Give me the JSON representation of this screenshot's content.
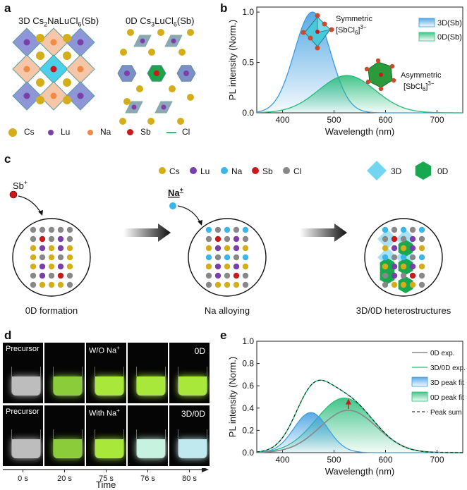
{
  "panels": {
    "a": "a",
    "b": "b",
    "c": "c",
    "d": "d",
    "e": "e"
  },
  "panel_a": {
    "title_3d_parts": [
      "3D Cs",
      "2",
      "NaLuCl",
      "6",
      "(Sb)"
    ],
    "title_0d_parts": [
      "0D Cs",
      "3",
      "LuCl",
      "6",
      "(Sb)"
    ],
    "legend": [
      {
        "label": "Cs",
        "color": "#d4ae1a"
      },
      {
        "label": "Lu",
        "color": "#7a3fa8"
      },
      {
        "label": "Na",
        "color": "#f08a45"
      },
      {
        "label": "Sb",
        "color": "#c81a1a"
      },
      {
        "label": "Cl",
        "color": "#2fbf74"
      }
    ]
  },
  "panel_b": {
    "ylabel": "PL intensity (Norm.)",
    "xlabel": "Wavelength (nm)",
    "inset_sym_parts": [
      "Symmetric",
      "[SbCl",
      "6",
      "]",
      "3−"
    ],
    "inset_asym_parts": [
      "Asymmetric",
      "[SbCl",
      "6",
      "]",
      "3−"
    ],
    "chart_data": {
      "type": "area",
      "xlim": [
        350,
        750
      ],
      "ylim": [
        0,
        1.05
      ],
      "xticks": [
        400,
        500,
        600,
        700
      ],
      "yticks": [
        0.0,
        0.5,
        1.0
      ],
      "series": [
        {
          "name": "3D(Sb)",
          "peak": 458,
          "sigma": 35,
          "amplitude": 1.0,
          "color": "#3a9be0"
        },
        {
          "name": "0D(Sb)",
          "peak": 525,
          "sigma": 55,
          "amplitude": 0.37,
          "color": "#22bb77"
        }
      ]
    }
  },
  "panel_c": {
    "legend": [
      {
        "label": "Cs",
        "color": "#d4ae1a"
      },
      {
        "label": "Lu",
        "color": "#7a3fa8"
      },
      {
        "label": "Na",
        "color": "#3bb6e8"
      },
      {
        "label": "Sb",
        "color": "#c81a1a"
      },
      {
        "label": "Cl",
        "color": "#888888"
      }
    ],
    "legend_3d": "3D",
    "legend_0d": "0D",
    "sb_label": "Sb",
    "sb_sup": "+",
    "na_label": "Na",
    "na_sup": "+",
    "captions": [
      "0D formation",
      "Na alloying",
      "3D/0D heterostructures"
    ]
  },
  "panel_d": {
    "row1": [
      {
        "text": "Precursor",
        "liquid": "#bdbdbd"
      },
      {
        "text": "",
        "liquid": "#8acc3a"
      },
      {
        "text": "W/O Na",
        "sup": "+",
        "liquid": "#a8e83a"
      },
      {
        "text": "",
        "liquid": "#a8e83a"
      },
      {
        "text": "0D",
        "liquid": "#a8e83a"
      }
    ],
    "row2": [
      {
        "text": "Precursor",
        "liquid": "#bdbdbd"
      },
      {
        "text": "",
        "liquid": "#8acc3a"
      },
      {
        "text": "With Na",
        "sup": "+",
        "liquid": "#a8e83a"
      },
      {
        "text": "",
        "liquid": "#c8f2e0"
      },
      {
        "text": "3D/0D",
        "liquid": "#bfe9ee"
      }
    ],
    "times": [
      "0 s",
      "20 s",
      "75 s",
      "76 s",
      "80 s"
    ],
    "axis_label": "Time"
  },
  "panel_e": {
    "ylabel": "PL intensity (Norm.)",
    "xlabel": "Wavelength (nm)",
    "chart_data": {
      "type": "line",
      "xlim": [
        350,
        750
      ],
      "ylim": [
        0,
        1.0
      ],
      "xticks": [
        400,
        500,
        600,
        700
      ],
      "yticks": [
        0.0,
        0.2,
        0.4,
        0.6,
        0.8,
        1.0
      ],
      "series": [
        {
          "name": "0D exp.",
          "peak": 528,
          "sigma": 55,
          "amplitude": 0.38,
          "color": "#888888"
        },
        {
          "name": "3D/0D exp.",
          "color": "#22bb77"
        },
        {
          "name": "3D peak fit",
          "peak": 455,
          "sigma": 33,
          "amplitude": 0.36,
          "color": "#3a9be0"
        },
        {
          "name": "0D peak fit",
          "peak": 520,
          "sigma": 55,
          "amplitude": 0.49,
          "color": "#22bb77"
        },
        {
          "name": "Peak sum",
          "color": "#111111"
        }
      ]
    }
  }
}
